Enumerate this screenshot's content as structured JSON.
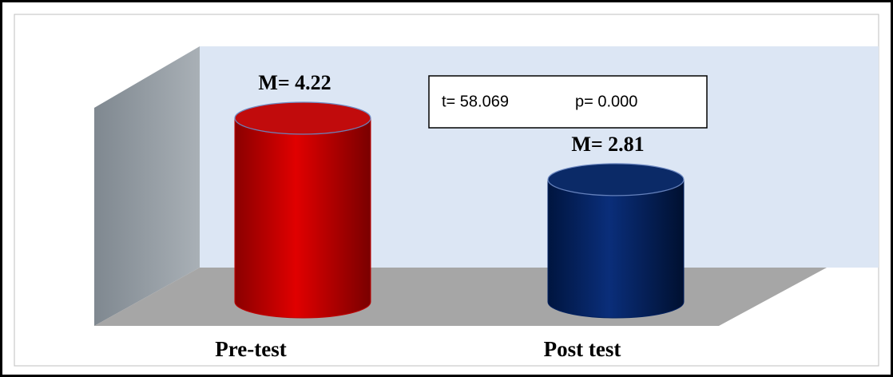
{
  "chart_data": {
    "type": "bar3d-cylinder",
    "categories": [
      "Pre-test",
      "Post test"
    ],
    "values": [
      4.22,
      2.81
    ],
    "value_labels": [
      "M= 4.22",
      "M= 2.81"
    ],
    "colors": [
      "#c00000",
      "#002060"
    ],
    "annotations": [
      "t= 58.069",
      "p= 0.000"
    ]
  }
}
